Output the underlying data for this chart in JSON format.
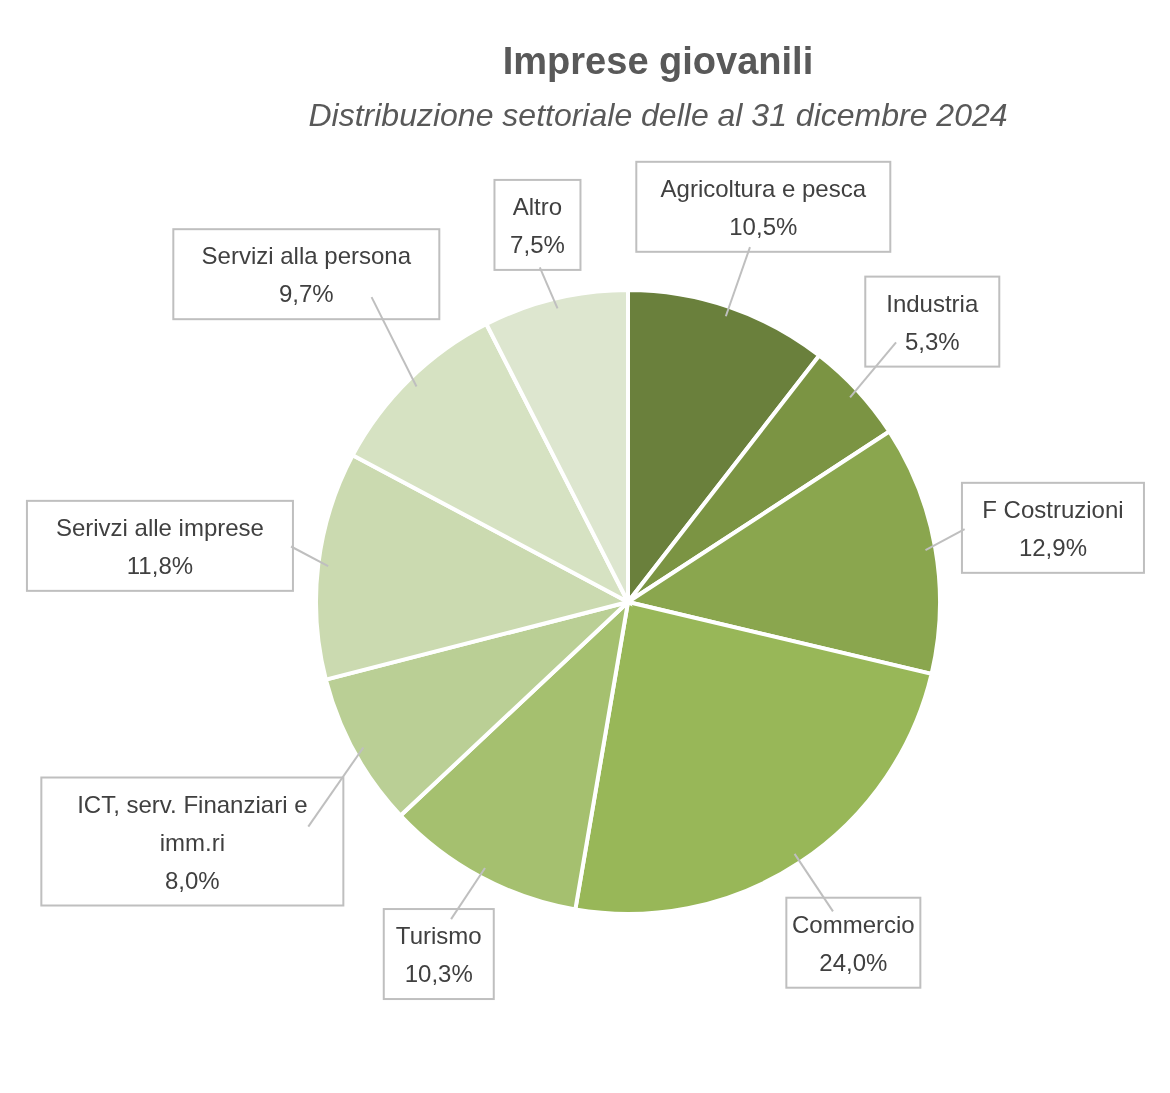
{
  "chart_data": {
    "type": "pie",
    "title": "Imprese giovanili",
    "subtitle": "Distribuzione settoriale delle al 31 dicembre 2024",
    "categories": [
      "Agricoltura e pesca",
      "Industria",
      "F Costruzioni",
      "Commercio",
      "Turismo",
      "ICT, serv. Finanziari e imm.ri",
      "Serivzi alle imprese",
      "Servizi alla persona",
      "Altro"
    ],
    "values": [
      10.5,
      5.3,
      12.9,
      24.0,
      10.3,
      8.0,
      11.8,
      9.7,
      7.5
    ],
    "value_labels": [
      "10,5%",
      "5,3%",
      "12,9%",
      "24,0%",
      "10,3%",
      "8,0%",
      "11,8%",
      "9,7%",
      "7,5%"
    ],
    "colors": [
      "#6a803c",
      "#7b9443",
      "#8aa64e",
      "#98b758",
      "#a5c06f",
      "#bacf95",
      "#cbdab0",
      "#d6e2c2",
      "#dde6cf"
    ]
  }
}
